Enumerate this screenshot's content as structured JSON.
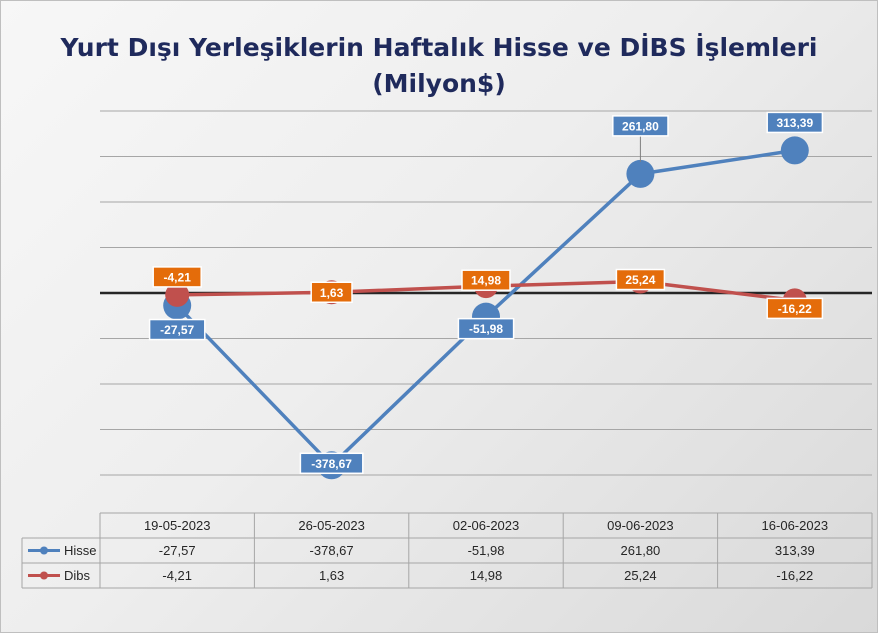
{
  "chart_data": {
    "type": "line",
    "title_line1": "Yurt Dışı Yerleşiklerin Haftalık Hisse ve DİBS İşlemleri",
    "title_line2": "(Milyon$)",
    "categories": [
      "19-05-2023",
      "26-05-2023",
      "02-06-2023",
      "09-06-2023",
      "16-06-2023"
    ],
    "series": [
      {
        "name": "Hisse",
        "color": "#4f81bd",
        "values": [
          -27.57,
          -378.67,
          -51.98,
          261.8,
          313.39
        ],
        "labels": [
          "-27,57",
          "-378,67",
          "-51,98",
          "261,80",
          "313,39"
        ]
      },
      {
        "name": "Dibs",
        "color": "#c0504d",
        "label_color": "#e46c0a",
        "values": [
          -4.21,
          1.63,
          14.98,
          25.24,
          -16.22
        ],
        "labels": [
          "-4,21",
          "1,63",
          "14,98",
          "25,24",
          "-16,22"
        ]
      }
    ],
    "ylim": [
      -400,
      400
    ],
    "grid": true,
    "legend": "data-table"
  }
}
